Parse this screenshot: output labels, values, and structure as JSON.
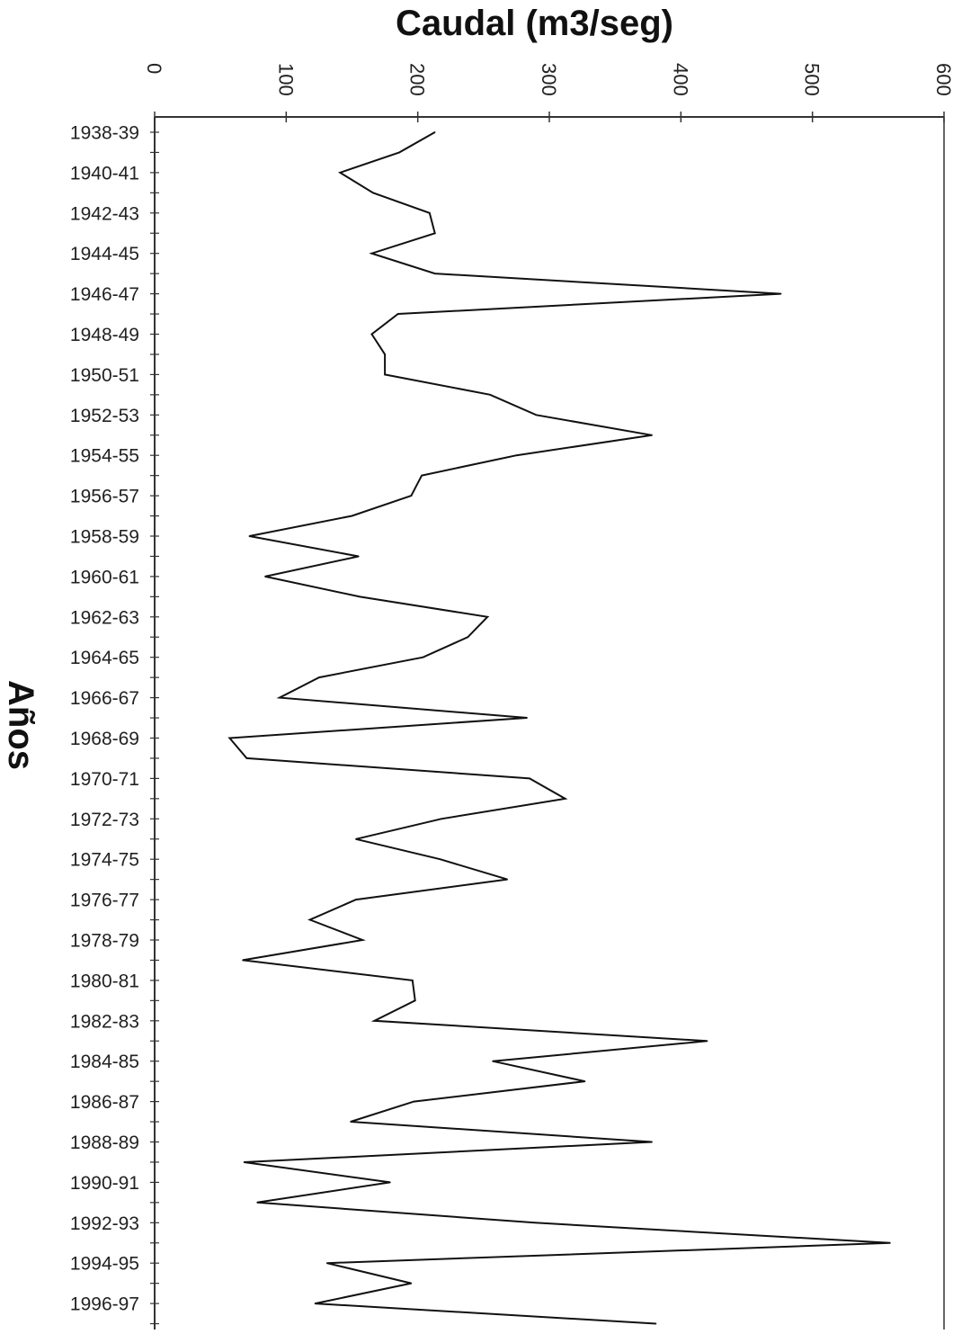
{
  "chart_data": {
    "type": "line",
    "orientation": "horizontal-values",
    "title": "",
    "xlabel": "Caudal (m3/seg)",
    "ylabel": "Años",
    "xlim": [
      0,
      600
    ],
    "xticks": [
      "0",
      "100",
      "200",
      "300",
      "400",
      "500",
      "600"
    ],
    "grid": false,
    "categories": [
      "1938-39",
      "1939-40",
      "1940-41",
      "1941-42",
      "1942-43",
      "1943-44",
      "1944-45",
      "1945-46",
      "1946-47",
      "1947-48",
      "1948-49",
      "1949-50",
      "1950-51",
      "1951-52",
      "1952-53",
      "1953-54",
      "1954-55",
      "1955-56",
      "1956-57",
      "1957-58",
      "1958-59",
      "1959-60",
      "1960-61",
      "1961-62",
      "1962-63",
      "1963-64",
      "1964-65",
      "1965-66",
      "1966-67",
      "1967-68",
      "1968-69",
      "1969-70",
      "1970-71",
      "1971-72",
      "1972-73",
      "1973-74",
      "1974-75",
      "1975-76",
      "1976-77",
      "1977-78",
      "1978-79",
      "1979-80",
      "1980-81",
      "1981-82",
      "1982-83",
      "1983-84",
      "1984-85",
      "1985-86",
      "1986-87",
      "1987-88",
      "1988-89",
      "1989-90",
      "1990-91",
      "1991-92",
      "1992-93",
      "1993-94",
      "1994-95",
      "1995-96",
      "1996-97",
      "1997-98"
    ],
    "category_labels": [
      "1938-39",
      "1940-41",
      "1942-43",
      "1944-45",
      "1946-47",
      "1948-49",
      "1950-51",
      "1952-53",
      "1954-55",
      "1956-57",
      "1958-59",
      "1960-61",
      "1962-63",
      "1964-65",
      "1966-67",
      "1968-69",
      "1970-71",
      "1972-73",
      "1974-75",
      "1976-77",
      "1978-79",
      "1980-81",
      "1982-83",
      "1984-85",
      "1986-87",
      "1988-89",
      "1990-91",
      "1992-93",
      "1994-95",
      "1996-97"
    ],
    "values": [
      213,
      186,
      141,
      166,
      209,
      213,
      165,
      213,
      476,
      185,
      165,
      175,
      175,
      255,
      290,
      378,
      275,
      203,
      195,
      150,
      72,
      155,
      84,
      156,
      253,
      238,
      204,
      125,
      95,
      283,
      57,
      70,
      285,
      312,
      218,
      153,
      217,
      268,
      153,
      118,
      158,
      67,
      196,
      198,
      167,
      420,
      257,
      327,
      197,
      149,
      378,
      68,
      179,
      78,
      289,
      559,
      131,
      195,
      122,
      381
    ],
    "line_color": "#111111"
  }
}
